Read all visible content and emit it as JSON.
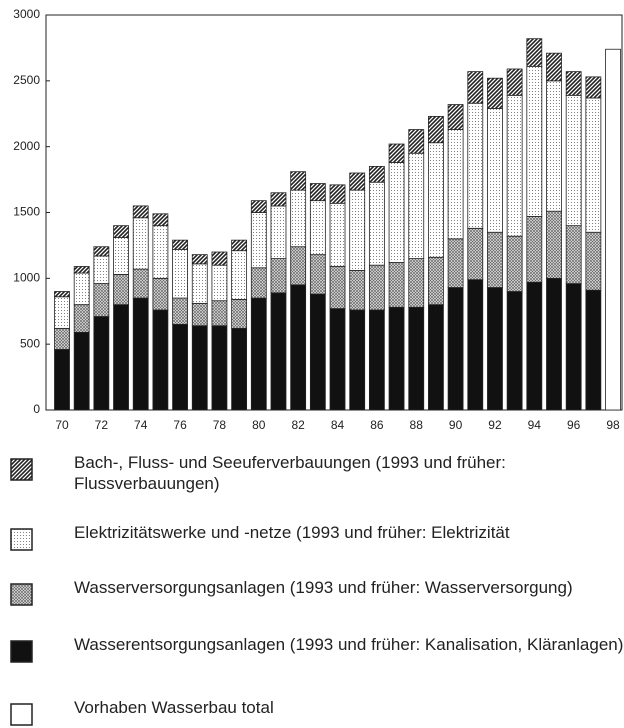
{
  "chart_data": {
    "type": "stacked-bar",
    "categories": [
      "70",
      null,
      "72",
      null,
      "74",
      null,
      "76",
      null,
      "78",
      null,
      "80",
      null,
      "82",
      null,
      "84",
      null,
      "86",
      null,
      "88",
      null,
      "90",
      null,
      "92",
      null,
      "94",
      null,
      "96",
      null,
      "98"
    ],
    "series": [
      {
        "name": "Bach-, Fluss- und Seeuferverbauungen (1993 und früher: Flussverbauungen)",
        "color": "#222222",
        "pattern": "diagonal",
        "values": [
          40,
          50,
          70,
          90,
          90,
          90,
          70,
          70,
          100,
          80,
          90,
          100,
          140,
          130,
          140,
          130,
          120,
          140,
          180,
          200,
          190,
          240,
          230,
          200,
          210,
          210,
          180,
          160,
          null
        ]
      },
      {
        "name": "Elektrizitätswerke und -netze (1993 und früher: Elektrizität",
        "color": "#222222",
        "pattern": "dots",
        "values": [
          240,
          240,
          210,
          280,
          390,
          400,
          370,
          300,
          270,
          370,
          420,
          400,
          430,
          410,
          480,
          610,
          630,
          760,
          800,
          870,
          830,
          950,
          940,
          1070,
          1140,
          990,
          990,
          1020,
          null
        ]
      },
      {
        "name": "Wasserversorgungsanlagen (1993 und früher: Wasserversorgung)",
        "color": "#222222",
        "pattern": "cross",
        "values": [
          160,
          210,
          250,
          230,
          220,
          240,
          200,
          170,
          190,
          220,
          230,
          260,
          290,
          300,
          320,
          300,
          340,
          340,
          370,
          360,
          370,
          390,
          420,
          420,
          500,
          510,
          440,
          440,
          null
        ]
      },
      {
        "name": "Wasserentsorgungsanlagen (1993 und früher: Kanalisation, Kläranlagen)",
        "color": "#111111",
        "pattern": "solid",
        "values": [
          460,
          590,
          710,
          800,
          850,
          760,
          650,
          640,
          640,
          620,
          850,
          890,
          950,
          880,
          770,
          760,
          760,
          780,
          780,
          800,
          930,
          990,
          930,
          900,
          970,
          1000,
          960,
          910,
          null
        ]
      },
      {
        "name": "Vorhaben Wasserbau total",
        "color": "#ffffff",
        "pattern": "solid",
        "values": [
          null,
          null,
          null,
          null,
          null,
          null,
          null,
          null,
          null,
          null,
          null,
          null,
          null,
          null,
          null,
          null,
          null,
          null,
          null,
          null,
          null,
          null,
          null,
          null,
          null,
          null,
          null,
          null,
          2740
        ]
      }
    ],
    "ylim": [
      0,
      3000
    ],
    "yticks": [
      0,
      500,
      1000,
      1500,
      2000,
      2500,
      3000
    ],
    "grid": false
  }
}
